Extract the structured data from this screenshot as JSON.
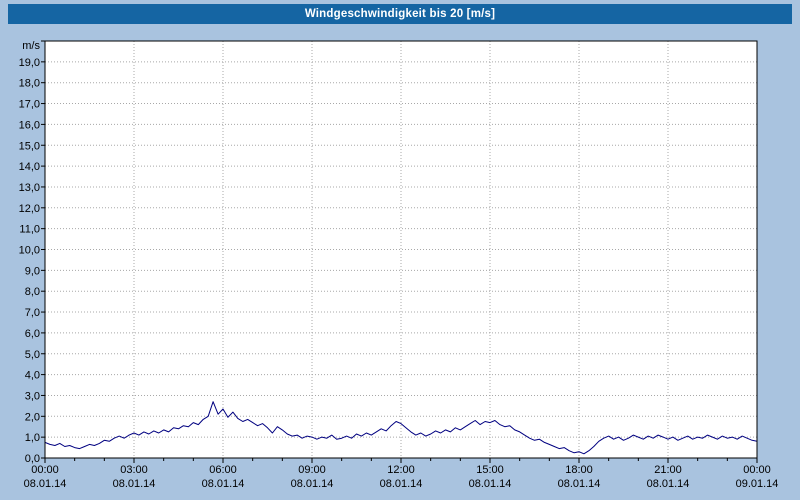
{
  "window": {
    "title": "Windgeschwindigkeit bis 20 [m/s]"
  },
  "colors": {
    "page_bg": "#a9c3df",
    "title_bg": "#1565a3",
    "title_fg": "#ffffff",
    "plot_bg": "#ffffff",
    "frame": "#000000",
    "grid": "#a8a8a8",
    "line": "#000080"
  },
  "chart_data": {
    "type": "line",
    "title": "Windgeschwindigkeit bis 20 [m/s]",
    "ylabel": "m/s",
    "xlabel": "",
    "unit_label": "m/s",
    "ylim": [
      0,
      20
    ],
    "grid": {
      "on": true,
      "style": "dotted"
    },
    "legend": "none",
    "y_tick_labels": [
      "0,0",
      "1,0",
      "2,0",
      "3,0",
      "4,0",
      "5,0",
      "6,0",
      "7,0",
      "8,0",
      "9,0",
      "10,0",
      "11,0",
      "12,0",
      "13,0",
      "14,0",
      "15,0",
      "16,0",
      "17,0",
      "18,0",
      "19,0"
    ],
    "x_ticks": [
      {
        "minutes": 0,
        "time": "00:00",
        "date": "08.01.14"
      },
      {
        "minutes": 180,
        "time": "03:00",
        "date": "08.01.14"
      },
      {
        "minutes": 360,
        "time": "06:00",
        "date": "08.01.14"
      },
      {
        "minutes": 540,
        "time": "09:00",
        "date": "08.01.14"
      },
      {
        "minutes": 720,
        "time": "12:00",
        "date": "08.01.14"
      },
      {
        "minutes": 900,
        "time": "15:00",
        "date": "08.01.14"
      },
      {
        "minutes": 1080,
        "time": "18:00",
        "date": "08.01.14"
      },
      {
        "minutes": 1260,
        "time": "21:00",
        "date": "08.01.14"
      },
      {
        "minutes": 1440,
        "time": "00:00",
        "date": "09.01.14"
      }
    ],
    "x_range_minutes": [
      0,
      1440
    ],
    "x_step_minutes": 10,
    "series": [
      {
        "name": "Windgeschwindigkeit",
        "unit": "m/s",
        "values": [
          0.75,
          0.65,
          0.6,
          0.7,
          0.55,
          0.6,
          0.5,
          0.45,
          0.55,
          0.65,
          0.6,
          0.7,
          0.85,
          0.8,
          0.95,
          1.05,
          0.95,
          1.1,
          1.2,
          1.1,
          1.25,
          1.15,
          1.3,
          1.2,
          1.35,
          1.25,
          1.45,
          1.4,
          1.55,
          1.5,
          1.7,
          1.6,
          1.85,
          2.0,
          2.7,
          2.1,
          2.35,
          1.95,
          2.2,
          1.9,
          1.75,
          1.85,
          1.7,
          1.55,
          1.65,
          1.45,
          1.2,
          1.5,
          1.35,
          1.15,
          1.05,
          1.1,
          0.95,
          1.05,
          1.0,
          0.9,
          1.0,
          0.95,
          1.1,
          0.9,
          0.95,
          1.05,
          0.95,
          1.15,
          1.05,
          1.2,
          1.1,
          1.25,
          1.4,
          1.3,
          1.55,
          1.75,
          1.65,
          1.45,
          1.25,
          1.1,
          1.2,
          1.05,
          1.15,
          1.3,
          1.2,
          1.35,
          1.25,
          1.45,
          1.35,
          1.5,
          1.65,
          1.8,
          1.6,
          1.75,
          1.7,
          1.8,
          1.6,
          1.5,
          1.55,
          1.35,
          1.25,
          1.1,
          0.95,
          0.85,
          0.9,
          0.75,
          0.65,
          0.55,
          0.45,
          0.5,
          0.35,
          0.25,
          0.3,
          0.2,
          0.35,
          0.55,
          0.8,
          0.95,
          1.05,
          0.9,
          1.0,
          0.85,
          0.95,
          1.1,
          1.0,
          0.9,
          1.05,
          0.95,
          1.1,
          1.0,
          0.9,
          1.0,
          0.85,
          0.95,
          1.05,
          0.9,
          1.0,
          0.95,
          1.1,
          1.0,
          0.9,
          1.05,
          0.95,
          1.0,
          0.9,
          1.05,
          0.95,
          0.85,
          0.8
        ]
      }
    ]
  }
}
